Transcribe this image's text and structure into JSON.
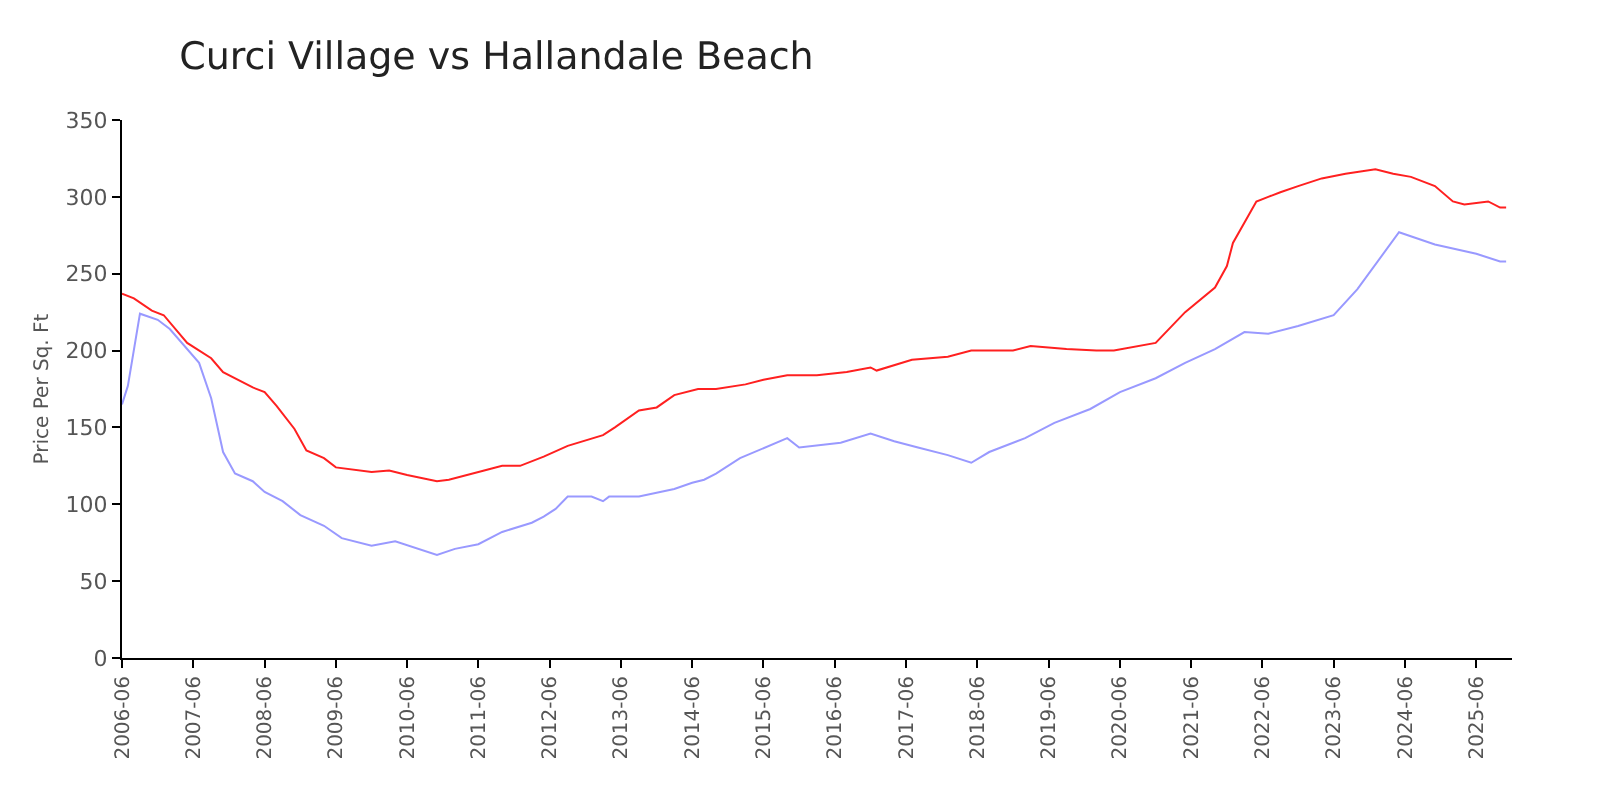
{
  "chart_data": {
    "type": "line",
    "title": "Curci Village vs Hallandale Beach",
    "ylabel": "Price Per Sq. Ft",
    "xlim": [
      "2006-06",
      "2025-12"
    ],
    "xticks": [
      "2006-06",
      "2007-06",
      "2008-06",
      "2009-06",
      "2010-06",
      "2011-06",
      "2012-06",
      "2013-06",
      "2014-06",
      "2015-06",
      "2016-06",
      "2017-06",
      "2018-06",
      "2019-06",
      "2020-06",
      "2021-06",
      "2022-06",
      "2023-06",
      "2024-06",
      "2025-06"
    ],
    "ylim": [
      0,
      350
    ],
    "yticks": [
      0,
      50,
      100,
      150,
      200,
      250,
      300,
      350
    ],
    "marker": "none",
    "line_style": "solid",
    "series": [
      {
        "color": "#ff2020",
        "x": [
          "2006-06",
          "2006-08",
          "2006-11",
          "2007-01",
          "2007-05",
          "2007-09",
          "2007-11",
          "2008-04",
          "2008-06",
          "2008-08",
          "2008-11",
          "2009-01",
          "2009-04",
          "2009-06",
          "2009-12",
          "2010-03",
          "2010-06",
          "2010-11",
          "2011-01",
          "2011-07",
          "2011-10",
          "2012-01",
          "2012-05",
          "2012-09",
          "2013-03",
          "2013-05",
          "2013-09",
          "2013-12",
          "2014-03",
          "2014-07",
          "2014-10",
          "2015-03",
          "2015-06",
          "2015-10",
          "2016-03",
          "2016-08",
          "2016-12",
          "2017-01",
          "2017-07",
          "2018-01",
          "2018-05",
          "2018-12",
          "2019-03",
          "2019-09",
          "2020-02",
          "2020-05",
          "2020-12",
          "2021-05",
          "2021-10",
          "2021-12",
          "2022-01",
          "2022-05",
          "2022-07",
          "2022-09",
          "2022-12",
          "2023-04",
          "2023-08",
          "2024-01",
          "2024-04",
          "2024-07",
          "2024-11",
          "2025-02",
          "2025-04",
          "2025-08",
          "2025-10",
          "2025-11"
        ],
        "values": [
          237,
          234,
          226,
          223,
          205,
          195,
          186,
          176,
          173,
          164,
          149,
          135,
          130,
          124,
          121,
          122,
          119,
          115,
          116,
          122,
          125,
          125,
          131,
          138,
          145,
          150,
          161,
          163,
          171,
          175,
          175,
          178,
          181,
          184,
          184,
          186,
          189,
          187,
          194,
          196,
          200,
          200,
          203,
          201,
          200,
          200,
          205,
          225,
          241,
          255,
          270,
          297,
          300,
          303,
          307,
          312,
          315,
          318,
          315,
          313,
          307,
          297,
          295,
          297,
          293,
          293
        ]
      },
      {
        "color": "#9999ff",
        "x": [
          "2006-06",
          "2006-07",
          "2006-09",
          "2006-12",
          "2007-02",
          "2007-07",
          "2007-09",
          "2007-11",
          "2008-01",
          "2008-04",
          "2008-06",
          "2008-09",
          "2008-12",
          "2009-04",
          "2009-07",
          "2009-12",
          "2010-04",
          "2010-11",
          "2011-02",
          "2011-06",
          "2011-10",
          "2012-03",
          "2012-05",
          "2012-07",
          "2012-09",
          "2013-01",
          "2013-03",
          "2013-04",
          "2013-09",
          "2014-03",
          "2014-06",
          "2014-08",
          "2014-10",
          "2015-02",
          "2015-10",
          "2015-12",
          "2016-07",
          "2016-12",
          "2017-04",
          "2017-08",
          "2018-01",
          "2018-05",
          "2018-08",
          "2019-02",
          "2019-07",
          "2020-01",
          "2020-06",
          "2020-12",
          "2021-05",
          "2021-10",
          "2022-03",
          "2022-07",
          "2022-12",
          "2023-06",
          "2023-10",
          "2024-05",
          "2024-11",
          "2025-06",
          "2025-10",
          "2025-11"
        ],
        "values": [
          165,
          177,
          224,
          220,
          214,
          192,
          169,
          134,
          120,
          115,
          108,
          102,
          93,
          86,
          78,
          73,
          76,
          67,
          71,
          74,
          82,
          88,
          92,
          97,
          105,
          105,
          102,
          105,
          105,
          110,
          114,
          116,
          120,
          130,
          143,
          137,
          140,
          146,
          141,
          137,
          132,
          127,
          134,
          143,
          153,
          162,
          173,
          182,
          192,
          201,
          212,
          211,
          216,
          223,
          240,
          277,
          269,
          263,
          258,
          258
        ]
      }
    ]
  }
}
